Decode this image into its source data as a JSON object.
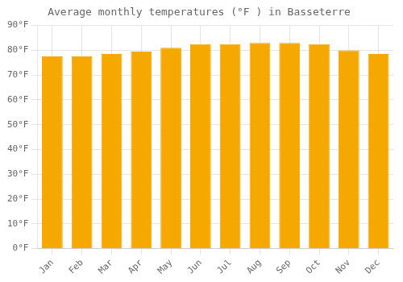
{
  "chart_data": {
    "type": "bar",
    "title": "Average monthly temperatures (°F ) in Basseterre",
    "categories": [
      "Jan",
      "Feb",
      "Mar",
      "Apr",
      "May",
      "Jun",
      "Jul",
      "Aug",
      "Sep",
      "Oct",
      "Nov",
      "Dec"
    ],
    "values": [
      77.5,
      77.5,
      78.5,
      79.5,
      81.0,
      82.5,
      82.5,
      83.0,
      83.0,
      82.5,
      80.0,
      78.5
    ],
    "color": "#F5A800",
    "ylim": [
      0,
      90
    ],
    "yticks": [
      {
        "value": 0,
        "label": "0°F"
      },
      {
        "value": 10,
        "label": "10°F"
      },
      {
        "value": 20,
        "label": "20°F"
      },
      {
        "value": 30,
        "label": "30°F"
      },
      {
        "value": 40,
        "label": "40°F"
      },
      {
        "value": 50,
        "label": "50°F"
      },
      {
        "value": 60,
        "label": "60°F"
      },
      {
        "value": 70,
        "label": "70°F"
      },
      {
        "value": 80,
        "label": "80°F"
      },
      {
        "value": 90,
        "label": "90°F"
      }
    ],
    "grid": true
  }
}
